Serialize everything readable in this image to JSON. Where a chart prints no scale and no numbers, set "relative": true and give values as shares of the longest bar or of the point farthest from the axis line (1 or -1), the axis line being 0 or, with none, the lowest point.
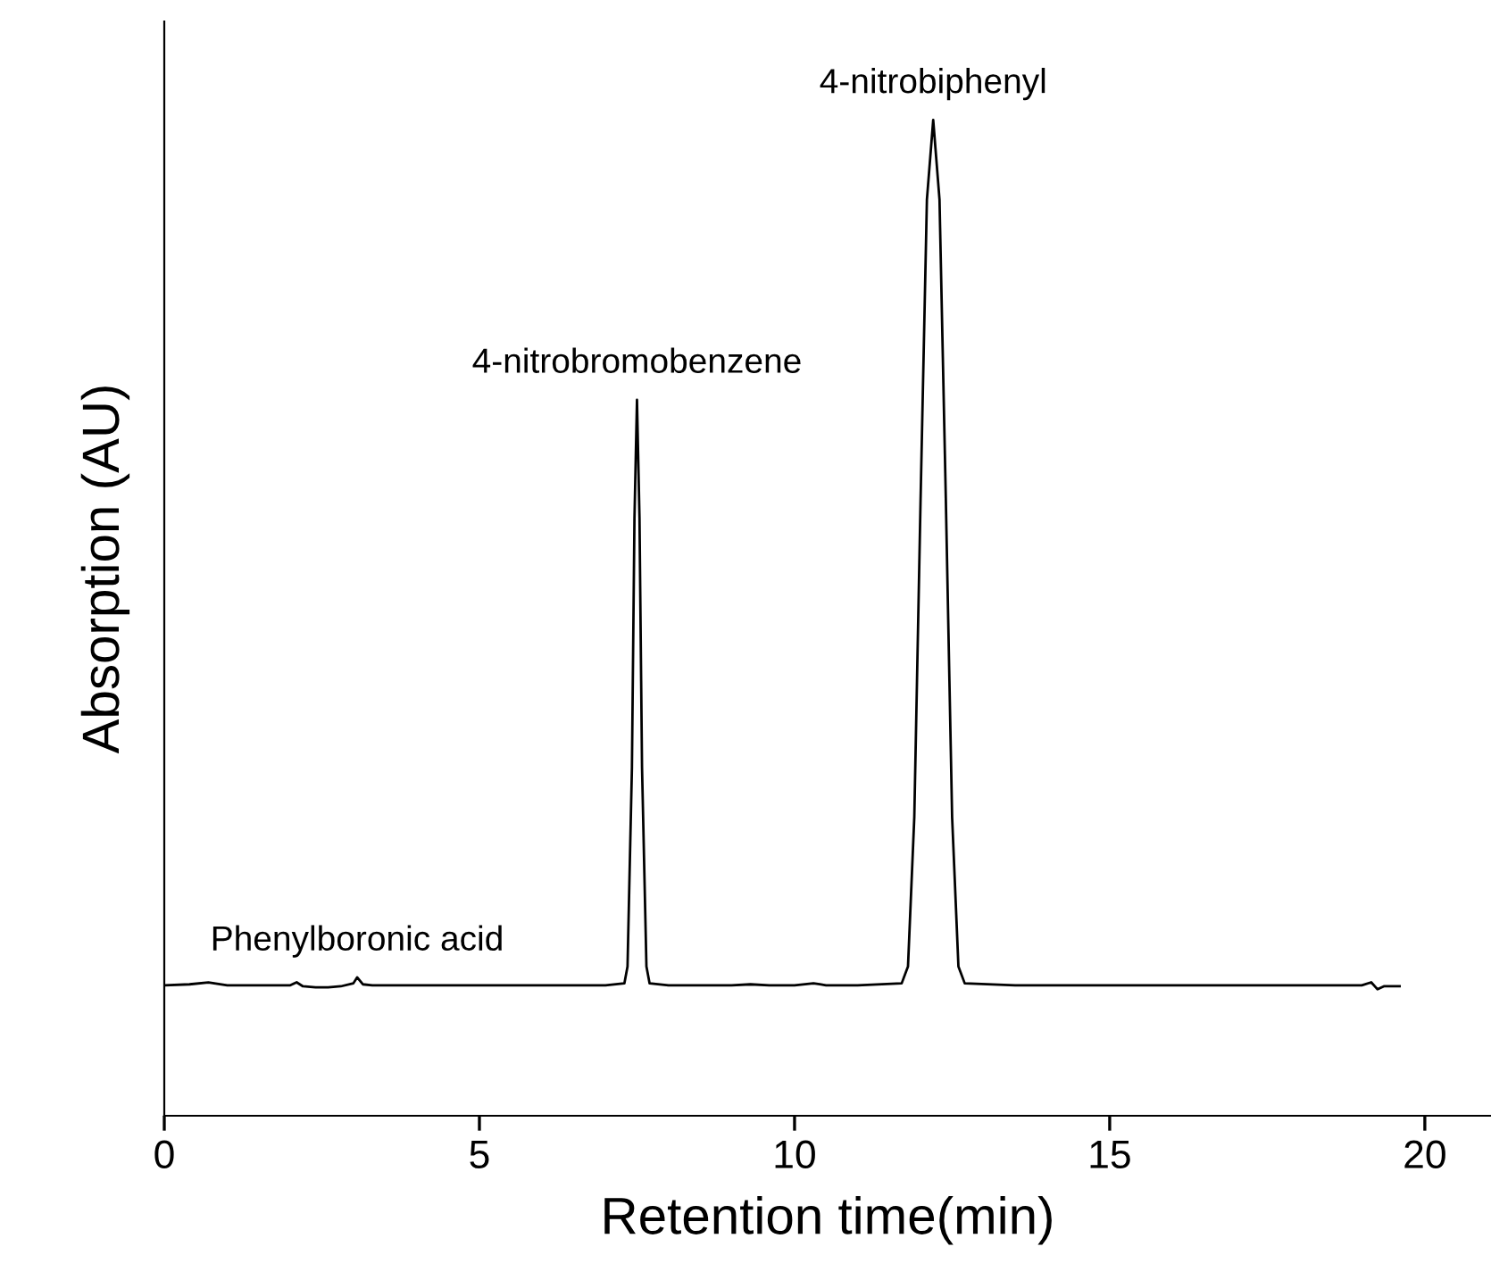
{
  "chart_data": {
    "type": "line",
    "xlabel": "Retention time(min)",
    "ylabel": "Absorption (AU)",
    "relative": true,
    "xlim": [
      0,
      21.05
    ],
    "xticks": [
      0,
      5,
      10,
      15,
      20
    ],
    "grid": false,
    "legend": false,
    "marker": "none",
    "line_style": "solid",
    "series": [
      {
        "color": "#000000",
        "x": [
          0,
          0.4,
          0.7,
          1.0,
          1.5,
          2.0,
          2.1,
          2.2,
          2.4,
          2.6,
          2.8,
          3.0,
          3.06,
          3.15,
          3.3,
          4.0,
          5.0,
          6.0,
          7.0,
          7.3,
          7.35,
          7.42,
          7.46,
          7.5,
          7.54,
          7.58,
          7.65,
          7.7,
          8.0,
          9.0,
          9.3,
          9.6,
          10.0,
          10.3,
          10.4,
          10.5,
          11.0,
          11.7,
          11.8,
          11.9,
          12.0,
          12.1,
          12.2,
          12.3,
          12.4,
          12.5,
          12.6,
          12.7,
          13.5,
          15.0,
          17.0,
          19.0,
          19.15,
          19.25,
          19.35,
          19.6
        ],
        "values": [
          0.131,
          0.132,
          0.134,
          0.131,
          0.131,
          0.131,
          0.134,
          0.13,
          0.129,
          0.129,
          0.13,
          0.133,
          0.139,
          0.132,
          0.131,
          0.131,
          0.131,
          0.131,
          0.131,
          0.133,
          0.15,
          0.35,
          0.6,
          0.719,
          0.6,
          0.35,
          0.15,
          0.133,
          0.131,
          0.131,
          0.132,
          0.131,
          0.131,
          0.133,
          0.132,
          0.131,
          0.131,
          0.133,
          0.15,
          0.3,
          0.62,
          0.92,
          1.0,
          0.92,
          0.62,
          0.3,
          0.15,
          0.133,
          0.131,
          0.131,
          0.131,
          0.131,
          0.134,
          0.127,
          0.13,
          0.13
        ]
      }
    ],
    "annotations": [
      {
        "text": "Phenylboronic acid",
        "x": 3.06,
        "y": 0.139
      },
      {
        "text": "4-nitrobromobenzene",
        "x": 7.5,
        "y": 0.719
      },
      {
        "text": "4-nitrobiphenyl",
        "x": 12.2,
        "y": 1.0
      }
    ]
  }
}
